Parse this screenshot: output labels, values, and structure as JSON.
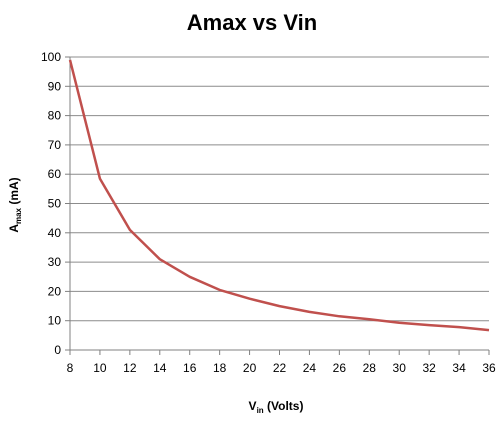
{
  "chart_data": {
    "type": "line",
    "title": "Amax vs Vin",
    "xlabel": {
      "main": "V",
      "sub": "in",
      "rest": " (Volts)"
    },
    "ylabel": {
      "main": "A",
      "sub": "max",
      "rest": " (mA)"
    },
    "xlim": [
      8,
      36
    ],
    "ylim": [
      0,
      100
    ],
    "xticks": [
      8,
      10,
      12,
      14,
      16,
      18,
      20,
      22,
      24,
      26,
      28,
      30,
      32,
      34,
      36
    ],
    "yticks": [
      0,
      10,
      20,
      30,
      40,
      50,
      60,
      70,
      80,
      90,
      100
    ],
    "grid": "horizontal",
    "legend": "none",
    "series": [
      {
        "color": "#c0504d",
        "x": [
          8,
          10,
          12,
          14,
          16,
          18,
          20,
          22,
          24,
          26,
          28,
          30,
          32,
          34,
          36
        ],
        "y": [
          99,
          58.5,
          41,
          31,
          25,
          20.5,
          17.5,
          15,
          13,
          11.5,
          10.5,
          9.3,
          8.5,
          7.8,
          6.8
        ]
      }
    ]
  }
}
